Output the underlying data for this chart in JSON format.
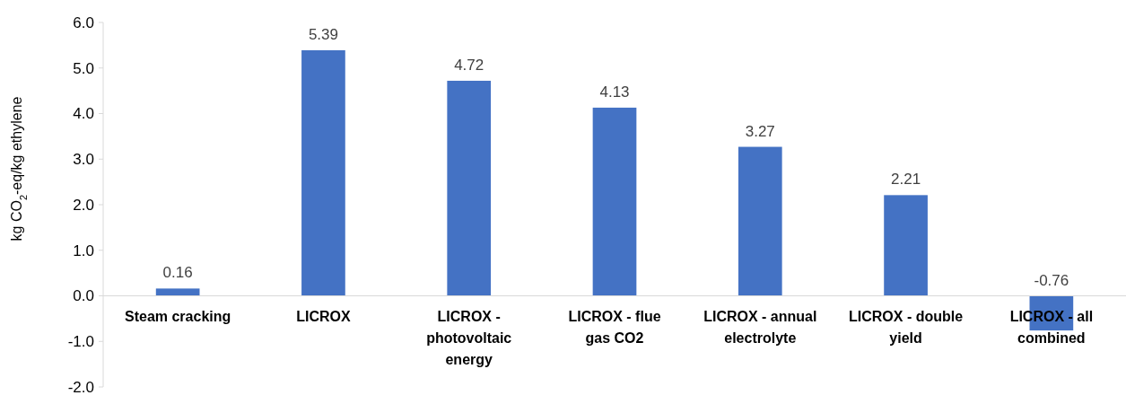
{
  "chart_data": {
    "type": "bar",
    "ylabel": "kg CO$_{2}$-eq/kg ethylene",
    "categories": [
      "Steam cracking",
      "LICROX",
      "LICROX - photovoltaic energy",
      "LICROX - flue gas CO2",
      "LICROX - annual electrolyte",
      "LICROX - double yield",
      "LICROX - all combined"
    ],
    "values": [
      0.16,
      5.39,
      4.72,
      4.13,
      3.27,
      2.21,
      -0.76
    ],
    "color": "#4472c4",
    "ylim": [
      -2,
      6
    ],
    "yticks": [
      {
        "value": -2,
        "label": "-2.0"
      },
      {
        "value": -1,
        "label": "-1.0"
      },
      {
        "value": 0,
        "label": "0.0"
      },
      {
        "value": 1,
        "label": "1.0"
      },
      {
        "value": 2,
        "label": "2.0"
      },
      {
        "value": 3,
        "label": "3.0"
      },
      {
        "value": 4,
        "label": "4.0"
      },
      {
        "value": 5,
        "label": "5.0"
      },
      {
        "value": 6,
        "label": "6.0"
      }
    ],
    "data_labels": true
  }
}
